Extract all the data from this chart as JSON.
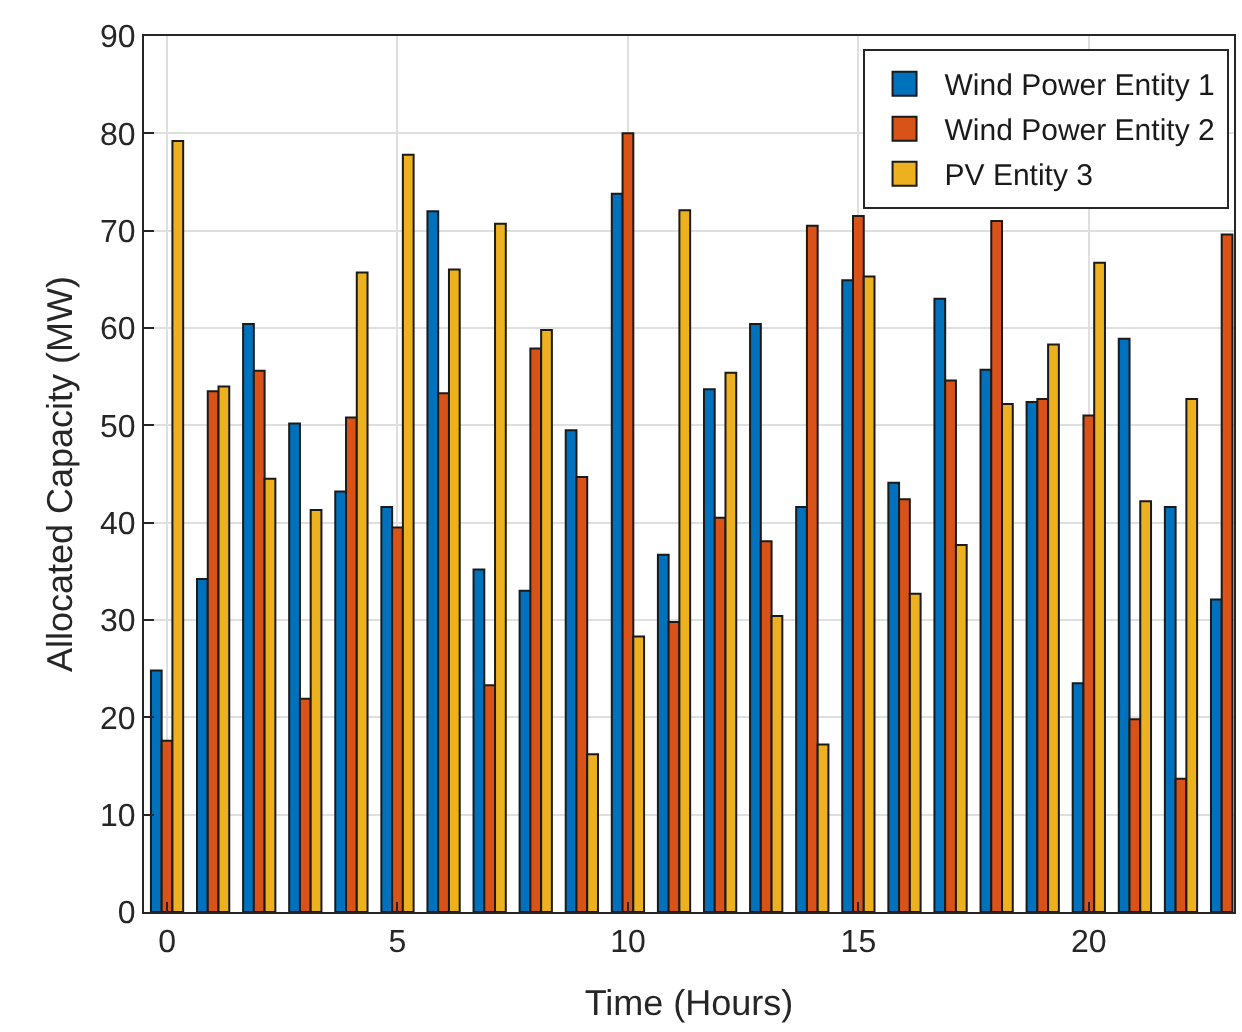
{
  "chart_data": {
    "type": "bar",
    "xlabel": "Time (Hours)",
    "ylabel": "Allocated Capacity (MW)",
    "x": [
      0,
      1,
      2,
      3,
      4,
      5,
      6,
      7,
      8,
      9,
      10,
      11,
      12,
      13,
      14,
      15,
      16,
      17,
      18,
      19,
      20,
      21,
      22,
      23
    ],
    "series": [
      {
        "name": "Wind Power Entity 1",
        "color": "#0072bd",
        "values": [
          24.8,
          34.2,
          60.4,
          50.2,
          43.2,
          41.6,
          72,
          35.2,
          33,
          49.5,
          73.8,
          36.7,
          53.7,
          60.4,
          41.6,
          64.9,
          44.1,
          63,
          55.7,
          52.4,
          23.5,
          58.9,
          41.6,
          32.1
        ]
      },
      {
        "name": "Wind Power Entity 2",
        "color": "#d95319",
        "values": [
          17.6,
          53.5,
          55.6,
          21.9,
          50.8,
          39.5,
          53.3,
          23.3,
          57.9,
          44.7,
          80,
          29.8,
          40.5,
          38.1,
          70.5,
          71.5,
          42.4,
          54.6,
          71,
          52.7,
          51,
          19.8,
          13.7,
          69.6
        ]
      },
      {
        "name": "PV Entity 3",
        "color": "#edb120",
        "values": [
          79.2,
          54,
          44.5,
          41.3,
          65.7,
          77.8,
          66,
          70.7,
          59.8,
          16.2,
          28.3,
          72.1,
          55.4,
          30.4,
          17.2,
          65.3,
          32.7,
          37.7,
          52.2,
          58.3,
          66.7,
          42.2,
          52.7,
          null
        ]
      }
    ],
    "xlim": [
      -0.5,
      23.15
    ],
    "xticks": [
      0,
      5,
      10,
      15,
      20
    ],
    "ylim": [
      0,
      90
    ],
    "yticks": [
      0,
      10,
      20,
      30,
      40,
      50,
      60,
      70,
      80,
      90
    ],
    "grid": true,
    "legend": "top right"
  }
}
